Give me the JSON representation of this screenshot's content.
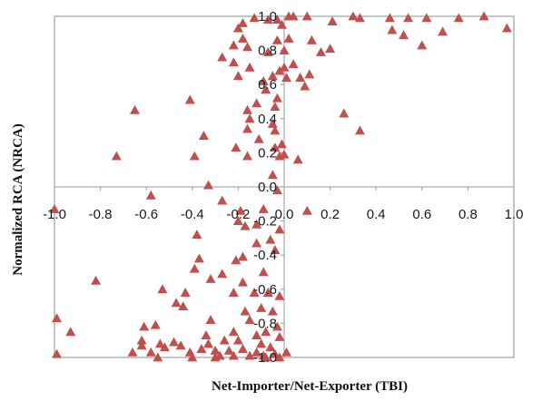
{
  "chart_data": {
    "type": "scatter",
    "xlabel": "Net-Importer/Net-Exporter (TBI)",
    "ylabel": "Normalized RCA  (NRCA)",
    "xlim": [
      -1.0,
      1.0
    ],
    "ylim": [
      -1.0,
      1.0
    ],
    "x_ticks": [
      "-1.0",
      "-0.8",
      "-0.6",
      "-0.4",
      "-0.2",
      "0.0",
      "0.2",
      "0.4",
      "0.6",
      "0.8",
      "1.0"
    ],
    "y_ticks": [
      "1.0",
      "0.8",
      "0.6",
      "0.4",
      "0.2",
      "0.0",
      "-0.2",
      "-0.4",
      "-0.6",
      "-0.8",
      "-1.0"
    ],
    "grid": false,
    "marker": "triangle",
    "colors": {
      "marker": "#c0504d",
      "axis": "#9a9a9a",
      "frame": "#8c8c8c"
    },
    "points": [
      [
        0.02,
        1.0
      ],
      [
        0.04,
        1.0
      ],
      [
        0.1,
        1.0
      ],
      [
        0.21,
        0.97
      ],
      [
        0.3,
        1.0
      ],
      [
        0.33,
        0.99
      ],
      [
        0.46,
        0.99
      ],
      [
        0.54,
        0.99
      ],
      [
        0.62,
        0.99
      ],
      [
        0.76,
        0.99
      ],
      [
        0.87,
        1.0
      ],
      [
        0.97,
        0.93
      ],
      [
        0.47,
        0.92
      ],
      [
        0.52,
        0.89
      ],
      [
        0.69,
        0.91
      ],
      [
        0.6,
        0.83
      ],
      [
        0.12,
        0.86
      ],
      [
        0.16,
        0.79
      ],
      [
        0.2,
        0.81
      ],
      [
        0.0,
        0.8
      ],
      [
        0.04,
        0.72
      ],
      [
        0.07,
        0.64
      ],
      [
        0.11,
        0.66
      ],
      [
        0.09,
        0.59
      ],
      [
        -0.01,
        0.95
      ],
      [
        -0.03,
        0.98
      ],
      [
        -0.07,
        0.98
      ],
      [
        -0.13,
        0.99
      ],
      [
        -0.18,
        0.96
      ],
      [
        -0.2,
        0.93
      ],
      [
        -0.18,
        0.87
      ],
      [
        -0.16,
        0.82
      ],
      [
        -0.22,
        0.83
      ],
      [
        -0.27,
        0.76
      ],
      [
        -0.22,
        0.73
      ],
      [
        -0.15,
        0.7
      ],
      [
        -0.07,
        0.79
      ],
      [
        -0.03,
        0.86
      ],
      [
        0.02,
        0.87
      ],
      [
        0.0,
        0.7
      ],
      [
        -0.02,
        0.68
      ],
      [
        -0.05,
        0.65
      ],
      [
        0.01,
        0.64
      ],
      [
        -0.09,
        0.62
      ],
      [
        -0.2,
        0.65
      ],
      [
        -0.08,
        0.57
      ],
      [
        -0.03,
        0.52
      ],
      [
        -0.04,
        0.47
      ],
      [
        -0.12,
        0.49
      ],
      [
        -0.16,
        0.45
      ],
      [
        -0.15,
        0.4
      ],
      [
        -0.05,
        0.37
      ],
      [
        -0.04,
        0.33
      ],
      [
        -0.16,
        0.34
      ],
      [
        -0.11,
        0.28
      ],
      [
        -0.01,
        0.25
      ],
      [
        -0.04,
        0.23
      ],
      [
        0.0,
        0.19
      ],
      [
        -0.05,
        0.07
      ],
      [
        -0.21,
        0.23
      ],
      [
        -0.16,
        0.18
      ],
      [
        -0.02,
        0.18
      ],
      [
        0.06,
        0.16
      ],
      [
        -0.03,
        -0.02
      ],
      [
        0.26,
        0.43
      ],
      [
        0.33,
        0.33
      ],
      [
        -0.41,
        0.51
      ],
      [
        -0.35,
        0.3
      ],
      [
        -0.65,
        0.45
      ],
      [
        -0.73,
        0.18
      ],
      [
        -0.39,
        0.18
      ],
      [
        -0.58,
        -0.05
      ],
      [
        -1.0,
        -0.13
      ],
      [
        -0.33,
        0.01
      ],
      [
        -0.27,
        -0.08
      ],
      [
        -0.19,
        -0.14
      ],
      [
        -0.09,
        -0.13
      ],
      [
        0.1,
        -0.14
      ],
      [
        -0.2,
        -0.2
      ],
      [
        -0.17,
        -0.23
      ],
      [
        -0.12,
        -0.22
      ],
      [
        -0.02,
        -0.25
      ],
      [
        -0.06,
        -0.31
      ],
      [
        -0.12,
        -0.33
      ],
      [
        -0.04,
        -0.37
      ],
      [
        -0.18,
        -0.41
      ],
      [
        -0.21,
        -0.43
      ],
      [
        -0.37,
        -0.42
      ],
      [
        -0.39,
        -0.48
      ],
      [
        -0.32,
        -0.54
      ],
      [
        -0.27,
        -0.51
      ],
      [
        -0.18,
        -0.56
      ],
      [
        -0.09,
        -0.5
      ],
      [
        -0.07,
        -0.62
      ],
      [
        -0.02,
        -0.64
      ],
      [
        -0.13,
        -0.62
      ],
      [
        -0.22,
        -0.62
      ],
      [
        -0.1,
        -0.71
      ],
      [
        -0.05,
        -0.73
      ],
      [
        -0.17,
        -0.73
      ],
      [
        -0.03,
        -0.82
      ],
      [
        -0.08,
        -0.85
      ],
      [
        -0.12,
        -0.87
      ],
      [
        -0.22,
        -0.85
      ],
      [
        -0.15,
        -0.78
      ],
      [
        -0.26,
        -0.9
      ],
      [
        -0.32,
        -0.78
      ],
      [
        -0.34,
        -0.87
      ],
      [
        -0.43,
        -0.62
      ],
      [
        -0.44,
        -0.7
      ],
      [
        -0.38,
        -0.28
      ],
      [
        -0.47,
        -0.68
      ],
      [
        -0.82,
        -0.55
      ],
      [
        -0.53,
        -0.6
      ],
      [
        -0.61,
        -0.82
      ],
      [
        -0.56,
        -0.81
      ],
      [
        -0.62,
        -0.9
      ],
      [
        -0.99,
        -0.77
      ],
      [
        -0.93,
        -0.85
      ],
      [
        -0.99,
        -0.98
      ],
      [
        -0.66,
        -0.97
      ],
      [
        -0.58,
        -0.97
      ],
      [
        -0.62,
        -0.93
      ],
      [
        -0.54,
        -0.92
      ],
      [
        -0.52,
        -0.94
      ],
      [
        -0.48,
        -0.91
      ],
      [
        -0.45,
        -0.93
      ],
      [
        -0.41,
        -0.97
      ],
      [
        -0.36,
        -0.95
      ],
      [
        -0.33,
        -0.92
      ],
      [
        -0.3,
        -0.96
      ],
      [
        -0.28,
        -0.99
      ],
      [
        -0.24,
        -0.96
      ],
      [
        -0.22,
        -0.99
      ],
      [
        -0.18,
        -0.95
      ],
      [
        -0.15,
        -0.99
      ],
      [
        -0.12,
        -0.97
      ],
      [
        -0.09,
        -0.99
      ],
      [
        -0.06,
        -0.94
      ],
      [
        -0.04,
        -0.98
      ],
      [
        -0.02,
        -1.0
      ],
      [
        0.01,
        -0.97
      ],
      [
        -0.4,
        -1.0
      ],
      [
        -0.3,
        -1.0
      ],
      [
        -0.2,
        -0.9
      ],
      [
        -0.1,
        -0.92
      ],
      [
        -0.02,
        -0.88
      ],
      [
        -0.55,
        -1.0
      ],
      [
        -0.08,
        -1.0
      ]
    ]
  }
}
